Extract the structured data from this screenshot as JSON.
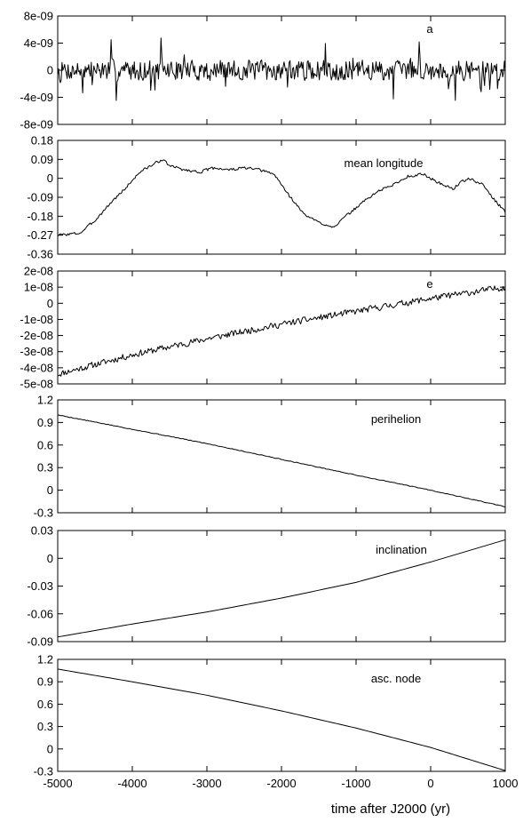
{
  "chart_data": [
    {
      "type": "line",
      "label": "a",
      "yticks": [
        "8e-09",
        "4e-09",
        "0",
        "-4e-09",
        "-8e-09"
      ],
      "ylim": [
        -8e-09,
        8e-09
      ],
      "xlim": [
        -5000,
        1000
      ],
      "series": [
        {
          "trend": [
            [
              -5000,
              0
            ],
            [
              1000,
              0
            ]
          ],
          "noise": {
            "amplitude": 2.6e-09,
            "points": 520,
            "seed": 7,
            "spikes": 0.08
          }
        }
      ]
    },
    {
      "type": "line",
      "label": "mean longitude",
      "yticks": [
        "0.18",
        "0.09",
        "0",
        "-0.09",
        "-0.18",
        "-0.27",
        "-0.36"
      ],
      "ylim": [
        -0.36,
        0.18
      ],
      "xlim": [
        -5000,
        1000
      ],
      "series": [
        {
          "trend": [
            [
              -5000,
              -0.27
            ],
            [
              -4700,
              -0.26
            ],
            [
              -4500,
              -0.2
            ],
            [
              -4300,
              -0.12
            ],
            [
              -4100,
              -0.05
            ],
            [
              -3900,
              0.03
            ],
            [
              -3700,
              0.07
            ],
            [
              -3600,
              0.09
            ],
            [
              -3500,
              0.06
            ],
            [
              -3300,
              0.04
            ],
            [
              -3100,
              0.03
            ],
            [
              -2900,
              0.05
            ],
            [
              -2700,
              0.04
            ],
            [
              -2500,
              0.05
            ],
            [
              -2300,
              0.04
            ],
            [
              -2100,
              0.02
            ],
            [
              -1900,
              -0.08
            ],
            [
              -1700,
              -0.17
            ],
            [
              -1500,
              -0.21
            ],
            [
              -1300,
              -0.23
            ],
            [
              -1100,
              -0.17
            ],
            [
              -900,
              -0.11
            ],
            [
              -700,
              -0.06
            ],
            [
              -500,
              -0.03
            ],
            [
              -300,
              0.01
            ],
            [
              -100,
              0.02
            ],
            [
              100,
              -0.02
            ],
            [
              300,
              -0.05
            ],
            [
              400,
              -0.02
            ],
            [
              500,
              0.0
            ],
            [
              700,
              -0.03
            ],
            [
              850,
              -0.1
            ],
            [
              1000,
              -0.16
            ]
          ],
          "noise": {
            "amplitude": 0.012,
            "points": 400,
            "seed": 3,
            "spikes": 0
          }
        }
      ]
    },
    {
      "type": "line",
      "label": "e",
      "yticks": [
        "2e-08",
        "1e-08",
        "0",
        "-1e-08",
        "-2e-08",
        "-3e-08",
        "-4e-08",
        "-5e-08"
      ],
      "ylim": [
        -5e-08,
        2e-08
      ],
      "xlim": [
        -5000,
        1000
      ],
      "series": [
        {
          "trend": [
            [
              -5000,
              -4.4e-08
            ],
            [
              -4000,
              -3.2e-08
            ],
            [
              -3000,
              -2.2e-08
            ],
            [
              -2000,
              -1.3e-08
            ],
            [
              -1000,
              -5e-09
            ],
            [
              0,
              3e-09
            ],
            [
              1000,
              1e-08
            ]
          ],
          "noise": {
            "amplitude": 3.5e-09,
            "points": 420,
            "seed": 11,
            "spikes": 0
          }
        }
      ]
    },
    {
      "type": "line",
      "label": "perihelion",
      "yticks": [
        "1.2",
        "0.9",
        "0.6",
        "0.3",
        "0",
        "-0.3"
      ],
      "ylim": [
        -0.3,
        1.2
      ],
      "xlim": [
        -5000,
        1000
      ],
      "series": [
        {
          "trend": [
            [
              -5000,
              1.0
            ],
            [
              -4000,
              0.81
            ],
            [
              -3000,
              0.62
            ],
            [
              -2000,
              0.41
            ],
            [
              -1000,
              0.2
            ],
            [
              0,
              0.0
            ],
            [
              1000,
              -0.22
            ]
          ],
          "noise": {
            "amplitude": 0.008,
            "points": 300,
            "seed": 5,
            "spikes": 0
          }
        }
      ]
    },
    {
      "type": "line",
      "label": "inclination",
      "yticks": [
        "0.03",
        "0",
        "-0.03",
        "-0.06",
        "-0.09"
      ],
      "ylim": [
        -0.09,
        0.03
      ],
      "xlim": [
        -5000,
        1000
      ],
      "series": [
        {
          "trend": [
            [
              -5000,
              -0.085
            ],
            [
              -4000,
              -0.071
            ],
            [
              -3000,
              -0.058
            ],
            [
              -2000,
              -0.043
            ],
            [
              -1000,
              -0.026
            ],
            [
              0,
              -0.004
            ],
            [
              1000,
              0.02
            ]
          ],
          "noise": {
            "amplitude": 0,
            "points": 0,
            "seed": 1,
            "spikes": 0
          }
        }
      ]
    },
    {
      "type": "line",
      "label": "asc. node",
      "yticks": [
        "1.2",
        "0.9",
        "0.6",
        "0.3",
        "0",
        "-0.3"
      ],
      "ylim": [
        -0.3,
        1.2
      ],
      "xlim": [
        -5000,
        1000
      ],
      "series": [
        {
          "trend": [
            [
              -5000,
              1.07
            ],
            [
              -4000,
              0.9
            ],
            [
              -3000,
              0.72
            ],
            [
              -2000,
              0.51
            ],
            [
              -1000,
              0.28
            ],
            [
              0,
              0.02
            ],
            [
              1000,
              -0.29
            ]
          ],
          "noise": {
            "amplitude": 0,
            "points": 0,
            "seed": 1,
            "spikes": 0
          }
        }
      ]
    }
  ],
  "x_axis": {
    "ticks": [
      -5000,
      -4000,
      -3000,
      -2000,
      -1000,
      0,
      1000
    ],
    "title": "time after J2000 (yr)"
  }
}
